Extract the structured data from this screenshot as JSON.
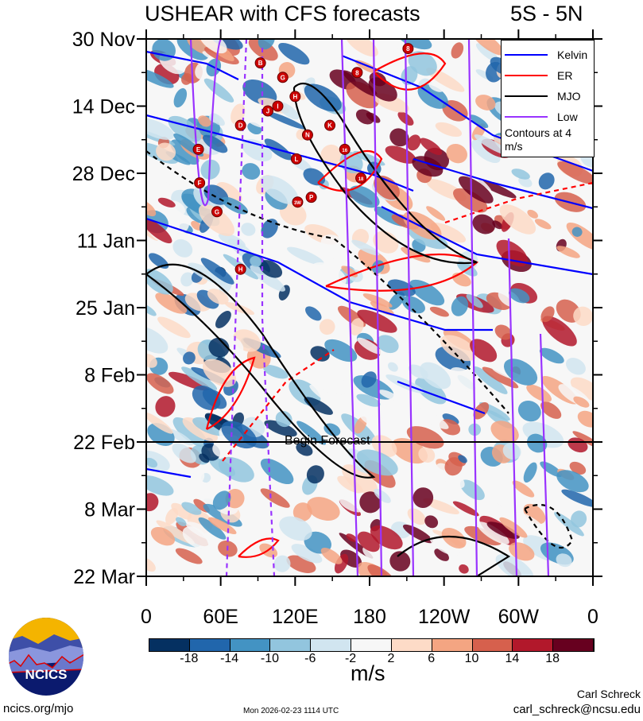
{
  "chart_data": {
    "type": "heatmap",
    "title": "USHEAR with CFS forecasts",
    "latitude_band": "5S - 5N",
    "xlabel": "",
    "ylabel": "",
    "x_tick_labels": [
      "0",
      "60E",
      "120E",
      "180",
      "120W",
      "60W",
      "0"
    ],
    "x_ticks_deg": [
      0,
      60,
      120,
      180,
      240,
      300,
      360
    ],
    "y_tick_labels": [
      "30 Nov",
      "14 Dec",
      "28 Dec",
      "11 Jan",
      "25 Jan",
      "8 Feb",
      "22 Feb",
      "8 Mar",
      "22 Mar"
    ],
    "y_ticks_day": [
      0,
      14,
      28,
      42,
      56,
      70,
      84,
      98,
      112
    ],
    "forecast_start_day": 84,
    "forecast_label": "Begin Forecast",
    "colorbar": {
      "units": "m/s",
      "levels": [
        -18,
        -14,
        -10,
        -6,
        -2,
        2,
        6,
        10,
        14,
        18
      ],
      "colors": [
        "#053061",
        "#2166ac",
        "#4393c3",
        "#92c5de",
        "#d1e5f0",
        "#f7f7f7",
        "#fddbc7",
        "#f4a582",
        "#d6604d",
        "#b2182b",
        "#67001f"
      ]
    },
    "legend": {
      "placement": "top-right",
      "entries": [
        {
          "name": "Kelvin",
          "color": "#0000ff"
        },
        {
          "name": "ER",
          "color": "#ff0000"
        },
        {
          "name": "MJO",
          "color": "#000000"
        },
        {
          "name": "Low",
          "color": "#9933ff"
        }
      ],
      "note": "Contours at 4 m/s"
    },
    "storms": [
      {
        "label": "B",
        "lon": 92,
        "day": 5
      },
      {
        "label": "G",
        "lon": 110,
        "day": 8
      },
      {
        "label": "H",
        "lon": 120,
        "day": 12
      },
      {
        "label": "I",
        "lon": 106,
        "day": 14
      },
      {
        "label": "J",
        "lon": 98,
        "day": 15
      },
      {
        "label": "D",
        "lon": 76,
        "day": 18
      },
      {
        "label": "K",
        "lon": 148,
        "day": 18
      },
      {
        "label": "N",
        "lon": 130,
        "day": 20
      },
      {
        "label": "E",
        "lon": 42,
        "day": 23
      },
      {
        "label": "L",
        "lon": 121,
        "day": 25
      },
      {
        "label": "16",
        "lon": 160,
        "day": 23
      },
      {
        "label": "18",
        "lon": 173,
        "day": 29
      },
      {
        "label": "F",
        "lon": 43,
        "day": 30
      },
      {
        "label": "P",
        "lon": 133,
        "day": 33
      },
      {
        "label": "3W",
        "lon": 122,
        "day": 34
      },
      {
        "label": "G",
        "lon": 57,
        "day": 36
      },
      {
        "label": "H",
        "lon": 76,
        "day": 48
      },
      {
        "label": "8",
        "lon": 211,
        "day": 2
      },
      {
        "label": "8",
        "lon": 170,
        "day": 7
      }
    ]
  },
  "footer": {
    "logo_text": "NCICS",
    "website": "ncics.org/mjo",
    "timestamp": "Mon 2026-02-23 1114 UTC",
    "author": "Carl Schreck",
    "email": "carl_schreck@ncsu.edu"
  }
}
